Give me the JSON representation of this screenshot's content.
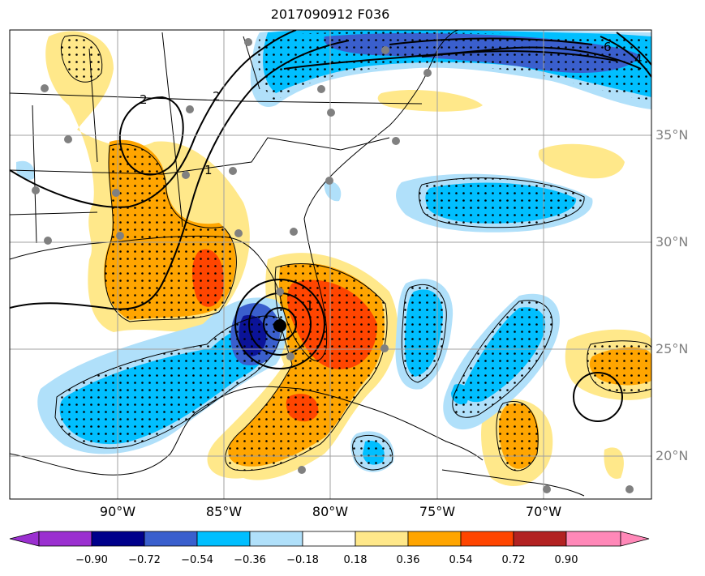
{
  "title": "2017090912 F036",
  "lat_labels": [
    "35°N",
    "30°N",
    "25°N",
    "20°N"
  ],
  "lon_labels": [
    "90°W",
    "85°W",
    "80°W",
    "75°W",
    "70°W"
  ],
  "contour_labels": [
    "2",
    "2",
    "1",
    "1",
    "4",
    "6"
  ],
  "colorbar": {
    "ticks": [
      "−0.90",
      "−0.72",
      "−0.54",
      "−0.36",
      "−0.18",
      "0.18",
      "0.36",
      "0.54",
      "0.72",
      "0.90"
    ],
    "colors": [
      "#9b30d0",
      "#00008b",
      "#3a5fcd",
      "#00bfff",
      "#b0e0fa",
      "#ffffff",
      "#ffe88a",
      "#ffa500",
      "#ff4500",
      "#b22222",
      "#ff88b8"
    ]
  },
  "colors": {
    "land_outline": "#000000",
    "grid": "#a0a0a0",
    "station": "#808080",
    "storm_center": "#000000"
  }
}
